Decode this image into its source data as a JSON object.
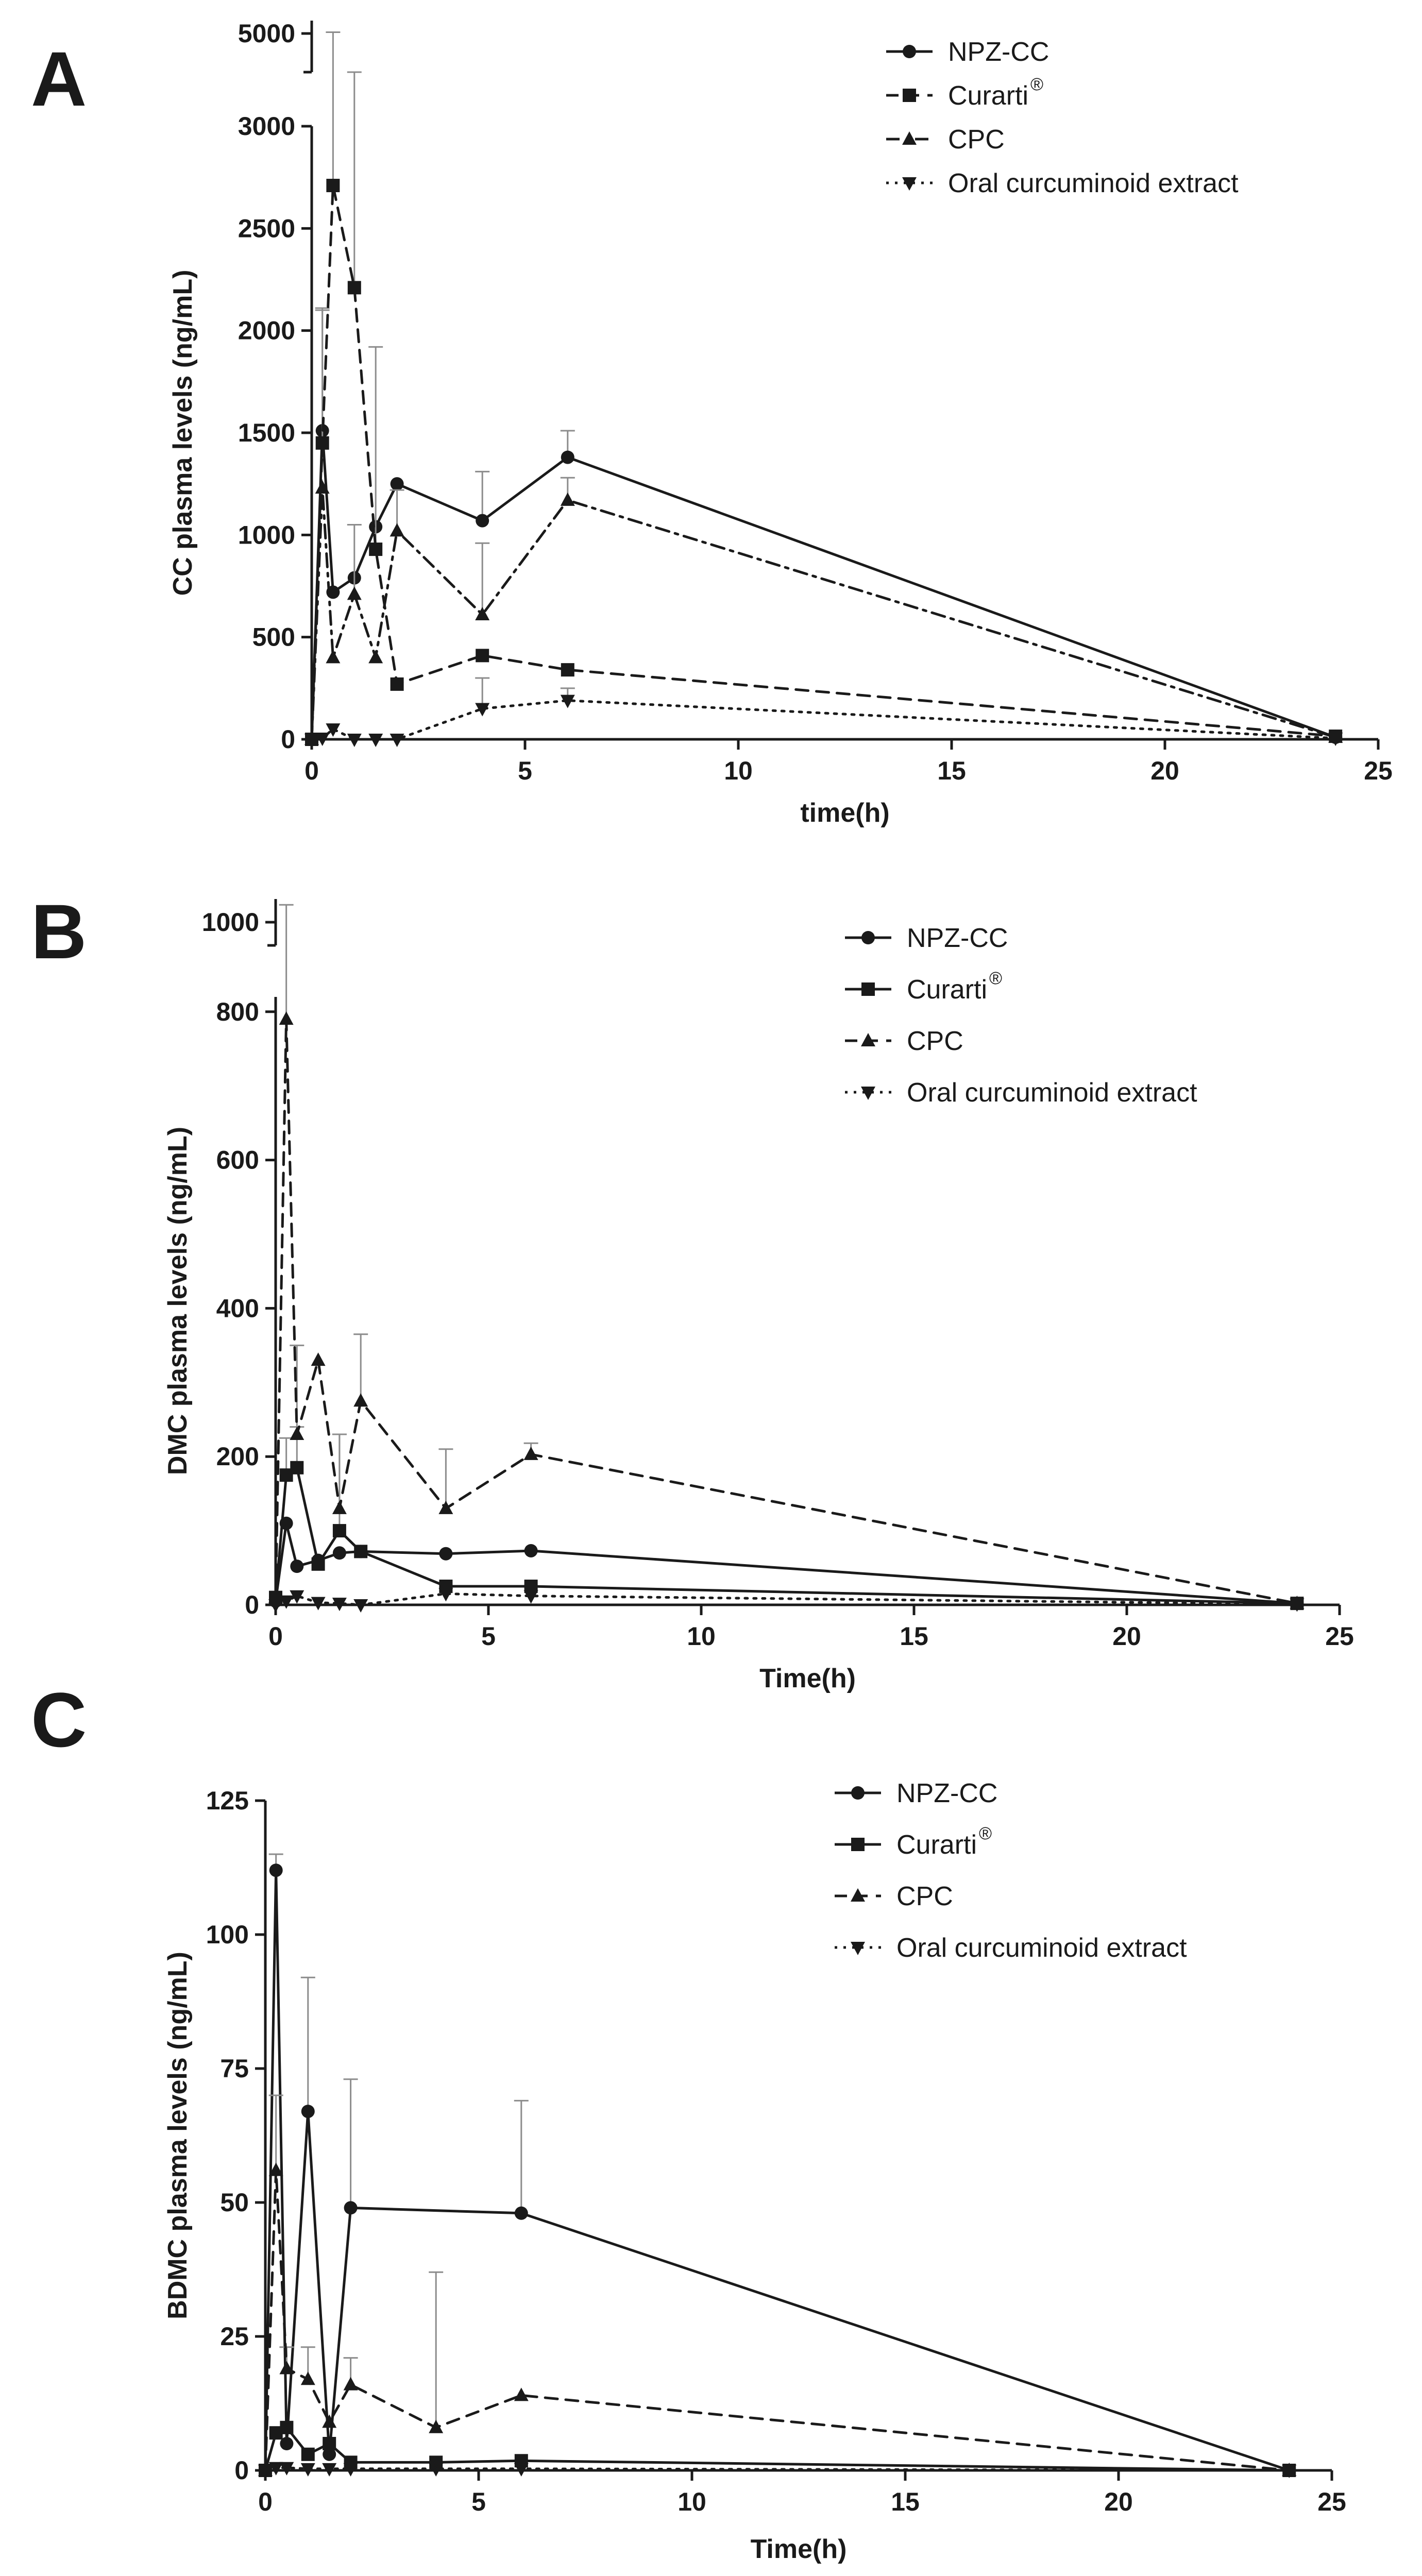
{
  "figure": {
    "panels": [
      "A",
      "B",
      "C"
    ]
  },
  "chart_data": [
    {
      "panel": "A",
      "type": "line",
      "title": "",
      "xlabel": "time(h)",
      "ylabel": "CC plasma levels (ng/mL)",
      "xlim": [
        0,
        25
      ],
      "ylim": [
        0,
        3000
      ],
      "y_break_upper": [
        4700,
        5100
      ],
      "xticks": [
        "0",
        "5",
        "10",
        "15",
        "20",
        "25"
      ],
      "yticks": [
        "0",
        "500",
        "1000",
        "1500",
        "2000",
        "2500",
        "3000"
      ],
      "yticks_upper": [
        "5000"
      ],
      "series": [
        {
          "name": "NPZ-CC",
          "registered": false,
          "marker": "circle",
          "line": "solid",
          "x": [
            0,
            0.25,
            0.5,
            1,
            1.5,
            2,
            4,
            6,
            24
          ],
          "y": [
            0,
            1510,
            720,
            790,
            1040,
            1250,
            1070,
            1380,
            10
          ],
          "err": [
            0,
            600,
            0,
            0,
            0,
            0,
            240,
            130,
            0
          ]
        },
        {
          "name": "Curarti",
          "registered": true,
          "marker": "square",
          "line": "dashed",
          "x": [
            0,
            0.25,
            0.5,
            1,
            1.5,
            2,
            4,
            6,
            24
          ],
          "y": [
            0,
            1450,
            2710,
            2210,
            930,
            270,
            410,
            340,
            15
          ],
          "err": [
            0,
            650,
            2300,
            2200,
            990,
            0,
            0,
            0,
            0
          ]
        },
        {
          "name": "CPC",
          "registered": false,
          "marker": "triangle-up",
          "line": "dashdot",
          "x": [
            0,
            0.25,
            0.5,
            1,
            1.5,
            2,
            4,
            6,
            24
          ],
          "y": [
            0,
            1230,
            400,
            710,
            400,
            1020,
            610,
            1170,
            10
          ],
          "err": [
            0,
            0,
            0,
            340,
            0,
            200,
            350,
            110,
            0
          ]
        },
        {
          "name": "Oral curcuminoid extract",
          "registered": false,
          "marker": "triangle-down",
          "line": "dotted",
          "x": [
            0,
            0.25,
            0.5,
            1,
            1.5,
            2,
            4,
            6,
            24
          ],
          "y": [
            0,
            5,
            50,
            0,
            0,
            0,
            150,
            190,
            5
          ],
          "err": [
            0,
            0,
            0,
            0,
            0,
            0,
            150,
            60,
            0
          ]
        }
      ]
    },
    {
      "panel": "B",
      "type": "line",
      "title": "",
      "xlabel": "Time(h)",
      "ylabel": "DMC plasma levels (ng/mL)",
      "xlim": [
        0,
        25
      ],
      "ylim": [
        0,
        820
      ],
      "y_break_upper": [
        960,
        1040
      ],
      "xticks": [
        "0",
        "5",
        "10",
        "15",
        "20",
        "25"
      ],
      "yticks": [
        "0",
        "200",
        "400",
        "600",
        "800"
      ],
      "yticks_upper": [
        "1000"
      ],
      "series": [
        {
          "name": "NPZ-CC",
          "registered": false,
          "marker": "circle",
          "line": "solid",
          "x": [
            0,
            0.25,
            0.5,
            1,
            1.5,
            2,
            4,
            6,
            24
          ],
          "y": [
            5,
            110,
            52,
            60,
            70,
            72,
            69,
            73,
            2
          ],
          "err": [
            0,
            0,
            0,
            0,
            0,
            0,
            0,
            0,
            0
          ]
        },
        {
          "name": "Curarti",
          "registered": true,
          "marker": "square",
          "line": "solid",
          "x": [
            0,
            0.25,
            0.5,
            1,
            1.5,
            2,
            4,
            6,
            24
          ],
          "y": [
            10,
            175,
            185,
            55,
            100,
            72,
            25,
            25,
            2
          ],
          "err": [
            0,
            50,
            55,
            0,
            130,
            0,
            0,
            0,
            0
          ]
        },
        {
          "name": "CPC",
          "registered": false,
          "marker": "triangle-up",
          "line": "dashed",
          "x": [
            0,
            0.25,
            0.5,
            1,
            1.5,
            2,
            4,
            6,
            24
          ],
          "y": [
            10,
            790,
            230,
            330,
            130,
            275,
            130,
            203,
            2
          ],
          "err": [
            0,
            240,
            120,
            0,
            100,
            90,
            80,
            15,
            0
          ]
        },
        {
          "name": "Oral curcuminoid extract",
          "registered": false,
          "marker": "triangle-down",
          "line": "dotted",
          "x": [
            0,
            0.25,
            0.5,
            1,
            1.5,
            2,
            4,
            6,
            24
          ],
          "y": [
            0,
            5,
            12,
            3,
            2,
            0,
            15,
            12,
            1
          ],
          "err": [
            0,
            0,
            0,
            0,
            0,
            0,
            0,
            0,
            0
          ]
        }
      ]
    },
    {
      "panel": "C",
      "type": "line",
      "title": "",
      "xlabel": "Time(h)",
      "ylabel": "BDMC plasma levels (ng/mL)",
      "xlim": [
        0,
        25
      ],
      "ylim": [
        0,
        125
      ],
      "xticks": [
        "0",
        "5",
        "10",
        "15",
        "20",
        "25"
      ],
      "yticks": [
        "0",
        "25",
        "50",
        "75",
        "100",
        "125"
      ],
      "series": [
        {
          "name": "NPZ-CC",
          "registered": false,
          "marker": "circle",
          "line": "solid",
          "x": [
            0,
            0.25,
            0.5,
            1,
            1.5,
            2,
            6,
            24
          ],
          "y": [
            0,
            112,
            5,
            67,
            3,
            49,
            48,
            0
          ],
          "err": [
            0,
            3,
            0,
            25,
            0,
            24,
            21,
            0
          ]
        },
        {
          "name": "Curarti",
          "registered": true,
          "marker": "square",
          "line": "solid",
          "x": [
            0,
            0.25,
            0.5,
            1,
            1.5,
            2,
            4,
            6,
            24
          ],
          "y": [
            0,
            7,
            8,
            3,
            5,
            1.5,
            1.5,
            1.8,
            0
          ],
          "err": [
            0,
            0,
            0,
            0,
            0,
            0,
            0,
            0,
            0
          ]
        },
        {
          "name": "CPC",
          "registered": false,
          "marker": "triangle-up",
          "line": "dashed",
          "x": [
            0,
            0.25,
            0.5,
            1,
            1.5,
            2,
            4,
            6,
            24
          ],
          "y": [
            0,
            56,
            19,
            17,
            9,
            16,
            8,
            14,
            0
          ],
          "err": [
            0,
            14,
            4,
            6,
            0,
            5,
            29,
            0,
            0
          ]
        },
        {
          "name": "Oral curcuminoid extract",
          "registered": false,
          "marker": "triangle-down",
          "line": "dotted",
          "x": [
            0,
            0.25,
            0.5,
            1,
            1.5,
            2,
            4,
            6,
            24
          ],
          "y": [
            0,
            0.5,
            0.5,
            0.3,
            0.3,
            0.3,
            0.3,
            0.3,
            0
          ],
          "err": [
            0,
            0,
            0,
            0,
            0,
            0,
            0,
            0,
            0
          ]
        }
      ]
    }
  ]
}
